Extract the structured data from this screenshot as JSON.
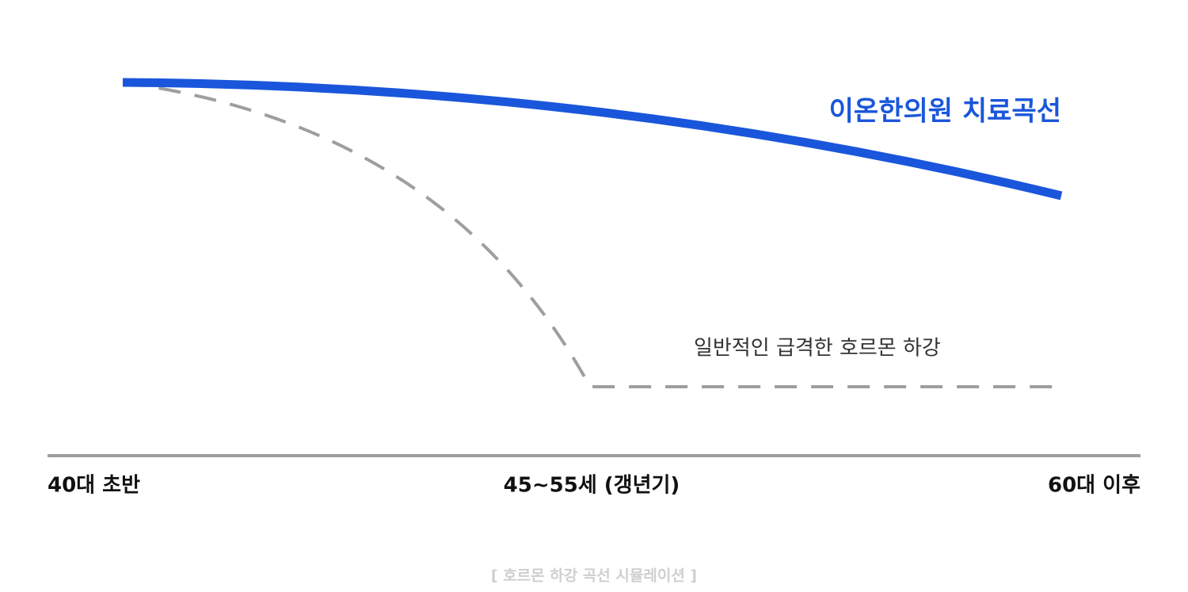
{
  "curves": {
    "treatment_label": "이온한의원 치료곡선",
    "typical_label": "일반적인 급격한 호르몬 하강"
  },
  "axis": {
    "labels": [
      "40대 초반",
      "45~55세 (갱년기)",
      "60대 이후"
    ]
  },
  "caption": "[ 호르몬 하강 곡선 시뮬레이션 ]"
}
